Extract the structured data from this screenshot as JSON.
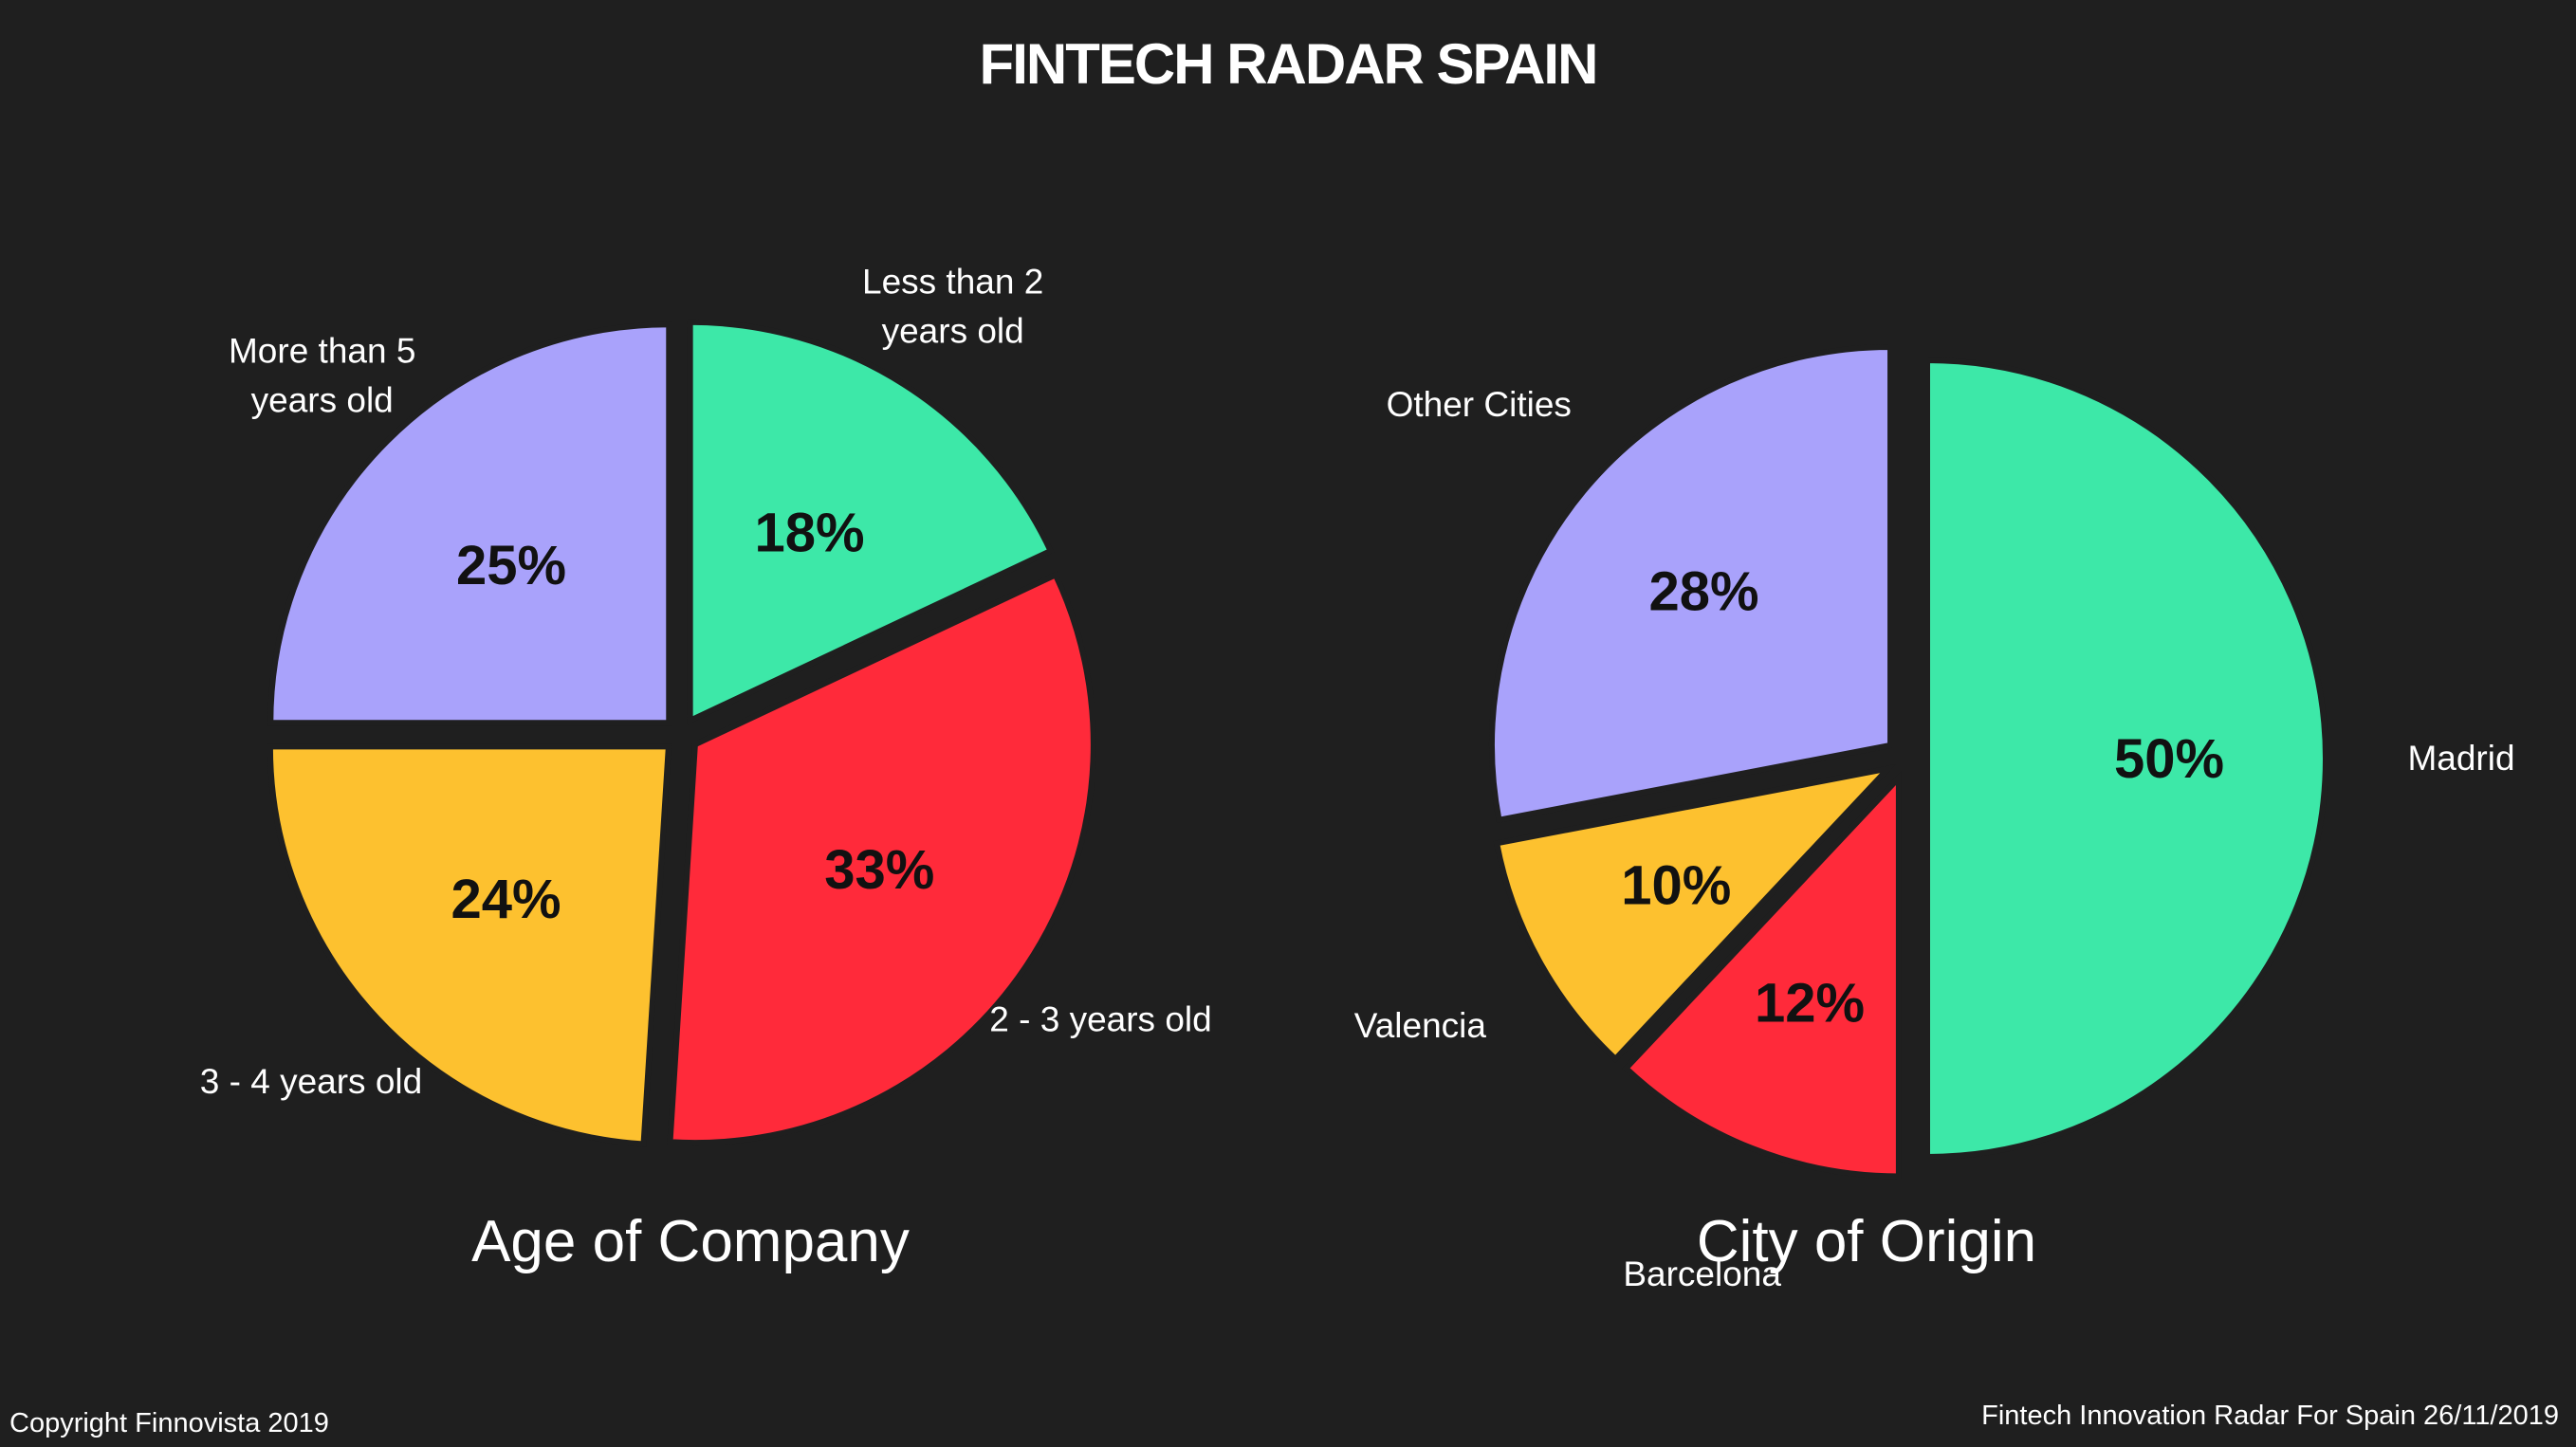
{
  "title": "FINTECH RADAR SPAIN",
  "footer": {
    "copyright": "Copyright Finnovista 2019",
    "source": "Fintech Innovation Radar For Spain 26/11/2019"
  },
  "chart_data": [
    {
      "type": "pie",
      "title": "Age of Company",
      "slices": [
        {
          "label_lines": [
            "Less than 2",
            "years old"
          ],
          "value": 18,
          "value_label": "18%",
          "color": "#3de8a8"
        },
        {
          "label_lines": [
            "2 - 3 years old"
          ],
          "value": 33,
          "value_label": "33%",
          "color": "#ff2a3a"
        },
        {
          "label_lines": [
            "3 - 4 years old"
          ],
          "value": 24,
          "value_label": "24%",
          "color": "#fdc12f"
        },
        {
          "label_lines": [
            "More than 5",
            "years old"
          ],
          "value": 25,
          "value_label": "25%",
          "color": "#a9a2fb"
        }
      ]
    },
    {
      "type": "pie",
      "title": "City of Origin",
      "slices": [
        {
          "label_lines": [
            "Madrid"
          ],
          "value": 50,
          "value_label": "50%",
          "color": "#3de8a8"
        },
        {
          "label_lines": [
            "Barcelona"
          ],
          "value": 12,
          "value_label": "12%",
          "color": "#ff2a3a"
        },
        {
          "label_lines": [
            "Valencia"
          ],
          "value": 10,
          "value_label": "10%",
          "color": "#fdc12f"
        },
        {
          "label_lines": [
            "Other Cities"
          ],
          "value": 28,
          "value_label": "28%",
          "color": "#a9a2fb"
        }
      ]
    }
  ]
}
